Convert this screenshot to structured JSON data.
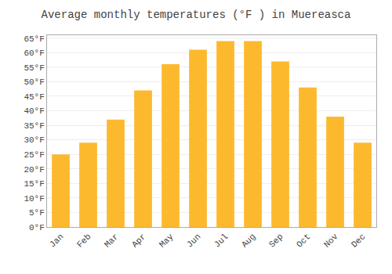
{
  "chart_data": {
    "type": "bar",
    "title": "Average monthly temperatures (°F ) in Muereasca",
    "categories": [
      "Jan",
      "Feb",
      "Mar",
      "Apr",
      "May",
      "Jun",
      "Jul",
      "Aug",
      "Sep",
      "Oct",
      "Nov",
      "Dec"
    ],
    "values": [
      25,
      29,
      37,
      47,
      56,
      61,
      64,
      64,
      57,
      48,
      38,
      29
    ],
    "color": "#FDB92E",
    "ylim": [
      0,
      66
    ],
    "yticks": [
      {
        "value": 0,
        "label": "0°F"
      },
      {
        "value": 5,
        "label": "5°F"
      },
      {
        "value": 10,
        "label": "10°F"
      },
      {
        "value": 15,
        "label": "15°F"
      },
      {
        "value": 20,
        "label": "20°F"
      },
      {
        "value": 25,
        "label": "25°F"
      },
      {
        "value": 30,
        "label": "30°F"
      },
      {
        "value": 35,
        "label": "35°F"
      },
      {
        "value": 40,
        "label": "40°F"
      },
      {
        "value": 45,
        "label": "45°F"
      },
      {
        "value": 50,
        "label": "50°F"
      },
      {
        "value": 55,
        "label": "55°F"
      },
      {
        "value": 60,
        "label": "60°F"
      },
      {
        "value": 65,
        "label": "65°F"
      }
    ],
    "grid": true
  }
}
